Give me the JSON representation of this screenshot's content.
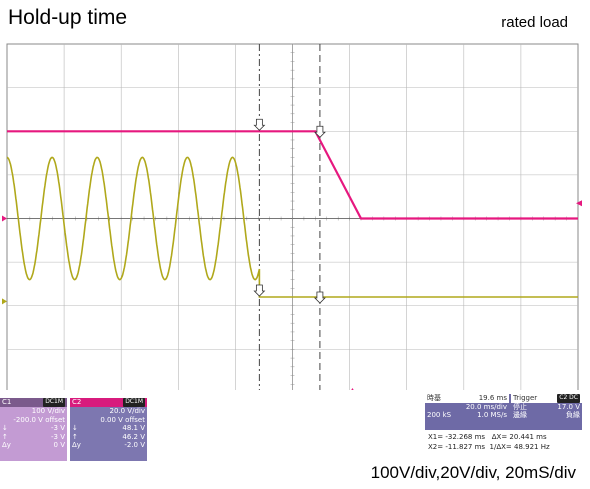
{
  "title": "Hold-up time",
  "subtitle": "rated load",
  "footer": "100V/div,20V/div, 20mS/div",
  "colors": {
    "ch2": "#e6187f",
    "ch1": "#b0a81b",
    "grid": "#b8b8b8",
    "cursor": "#444444"
  },
  "chart_data": {
    "type": "line",
    "title": "Hold-up time",
    "xlabel": "",
    "ylabel": "",
    "grid": true,
    "divisions": {
      "x": 10,
      "y": 8
    },
    "xlim_div": [
      0,
      10
    ],
    "ylim_div": [
      -4,
      4
    ],
    "series": [
      {
        "name": "C2",
        "x_div": [
          0,
          5.4,
          6.2,
          10
        ],
        "y_div": [
          2.0,
          2.0,
          0.0,
          0.0
        ]
      },
      {
        "name": "C1",
        "waveform": "sine",
        "amplitude_div": 1.4,
        "period_div": 0.79,
        "start_div": 0,
        "end_div": 4.42,
        "after_y_div": -1.8
      }
    ],
    "cursors_div": [
      4.42,
      5.48
    ]
  },
  "c1": {
    "label": "C1",
    "tag": "DC1M",
    "scale": "100 V/div",
    "offset": "-200.0 V offset",
    "rows": [
      {
        "k": "↓",
        "v": "-3 V"
      },
      {
        "k": "↑",
        "v": "-3 V"
      },
      {
        "k": "Δy",
        "v": "0 V"
      }
    ]
  },
  "c2": {
    "label": "C2",
    "tag": "DC1M",
    "scale": "20.0 V/div",
    "offset": "0.00 V offset",
    "rows": [
      {
        "k": "↓",
        "v": "48.1 V"
      },
      {
        "k": "↑",
        "v": "46.2 V"
      },
      {
        "k": "Δy",
        "v": "-2.0 V"
      }
    ]
  },
  "timebase": {
    "label": "時基",
    "value": "19.6 ms",
    "div": "20.0 ms/div",
    "samples": "200 kS",
    "rate": "1.0 MS/s"
  },
  "trigger": {
    "label": "Trigger",
    "tag": "C2 DC",
    "state": "停止",
    "level": "17.0 V",
    "edge": "邊緣",
    "slope": "負緣"
  },
  "measure": {
    "x1": "X1= -32.268 ms",
    "dx": "ΔX= 20.441 ms",
    "x2": "X2= -11.827 ms",
    "freq": "1/ΔX= 48.921 Hz"
  }
}
